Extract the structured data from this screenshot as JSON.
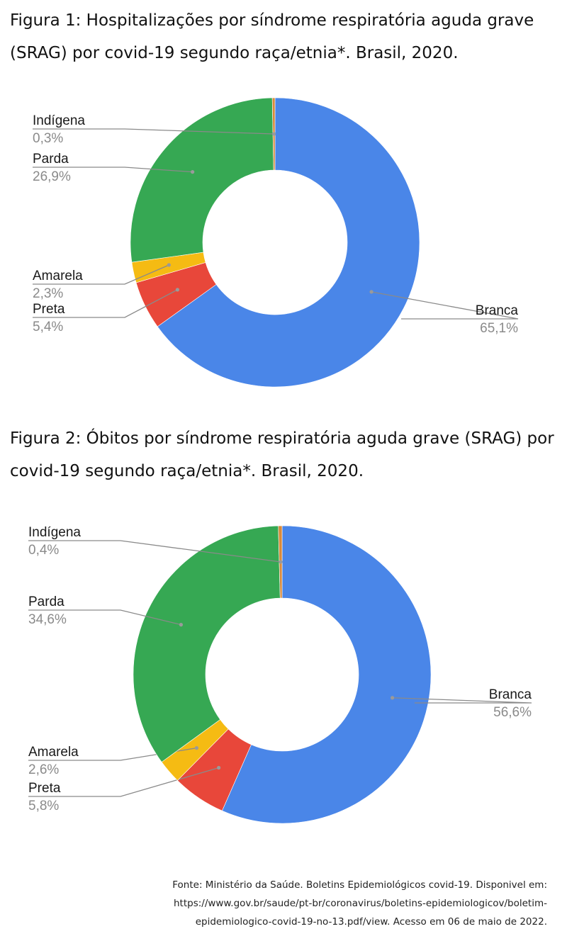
{
  "figure1": {
    "title": "Figura 1: Hospitalizações por síndrome respiratória aguda grave (SRAG) por covid-19 segundo raça/etnia*. Brasil, 2020."
  },
  "figure2": {
    "title": "Figura 2: Óbitos por síndrome respiratória aguda grave (SRAG) por covid-19 segundo raça/etnia*. Brasil, 2020."
  },
  "source": {
    "line1": "Fonte: Ministério da Saúde. Boletins Epidemiológicos covid-19. Disponivel em:",
    "line2": "https://www.gov.br/saude/pt-br/coronavirus/boletins-epidemiologicov/boletim-",
    "line3": "epidemiologico-covid-19-no-13.pdf/view. Acesso em 06 de maio de 2022."
  },
  "chart_data": [
    {
      "type": "pie",
      "donut": true,
      "title": "Figura 1: Hospitalizações por síndrome respiratória aguda grave (SRAG) por covid-19 segundo raça/etnia*. Brasil, 2020.",
      "slices": [
        {
          "name": "Branca",
          "value": 65.1,
          "label": "65,1%",
          "color": "#4a86e8"
        },
        {
          "name": "Preta",
          "value": 5.4,
          "label": "5,4%",
          "color": "#e8473a"
        },
        {
          "name": "Amarela",
          "value": 2.3,
          "label": "2,3%",
          "color": "#f5bb13"
        },
        {
          "name": "Parda",
          "value": 26.9,
          "label": "26,9%",
          "color": "#36a853"
        },
        {
          "name": "Indígena",
          "value": 0.3,
          "label": "0,3%",
          "color": "#d98a3a"
        }
      ]
    },
    {
      "type": "pie",
      "donut": true,
      "title": "Figura 2: Óbitos por síndrome respiratória aguda grave (SRAG) por covid-19 segundo raça/etnia*. Brasil, 2020.",
      "slices": [
        {
          "name": "Branca",
          "value": 56.6,
          "label": "56,6%",
          "color": "#4a86e8"
        },
        {
          "name": "Preta",
          "value": 5.8,
          "label": "5,8%",
          "color": "#e8473a"
        },
        {
          "name": "Amarela",
          "value": 2.6,
          "label": "2,6%",
          "color": "#f5bb13"
        },
        {
          "name": "Parda",
          "value": 34.6,
          "label": "34,6%",
          "color": "#36a853"
        },
        {
          "name": "Indígena",
          "value": 0.4,
          "label": "0,4%",
          "color": "#d98a3a"
        }
      ]
    }
  ]
}
